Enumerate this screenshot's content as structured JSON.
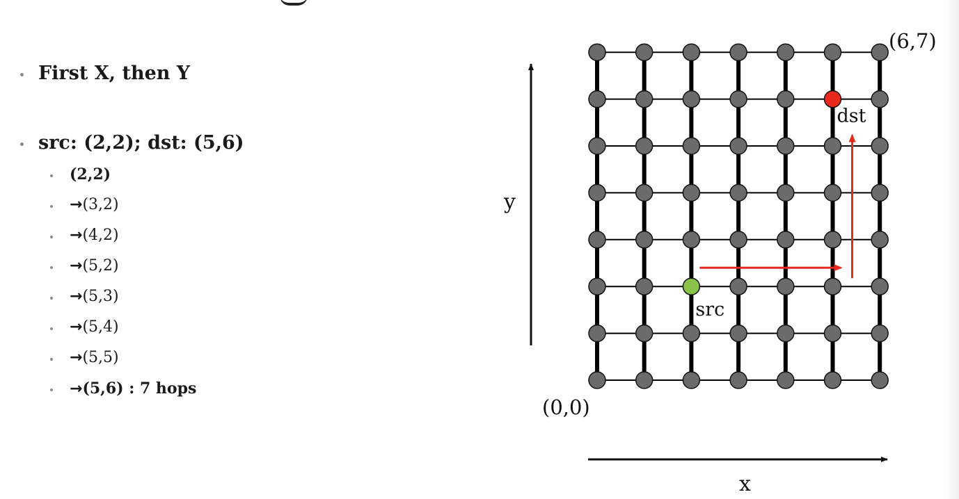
{
  "bullets": {
    "first": "First X, then Y",
    "src_dst": "src: (2,2); dst: (5,6)",
    "path": [
      {
        "arrow": "",
        "text": "(2,2)",
        "bold": true
      },
      {
        "arrow": "→",
        "text": "(3,2)",
        "bold": false
      },
      {
        "arrow": "→",
        "text": "(4,2)",
        "bold": false
      },
      {
        "arrow": "→",
        "text": "(5,2)",
        "bold": false
      },
      {
        "arrow": "→",
        "text": "(5,3)",
        "bold": false
      },
      {
        "arrow": "→",
        "text": "(5,4)",
        "bold": false
      },
      {
        "arrow": "→",
        "text": "(5,5)",
        "bold": false
      },
      {
        "arrow": "→",
        "text": "(5,6) : 7 hops",
        "bold": true
      }
    ]
  },
  "diagram": {
    "columns": 7,
    "rows": 8,
    "src": {
      "x": 2,
      "y": 2,
      "label": "src",
      "color": "#8bc34a"
    },
    "dst": {
      "x": 5,
      "y": 6,
      "label": "dst",
      "color": "#e8291c"
    },
    "node_color": "#6b6b6b",
    "route_color": "#e8291c",
    "corner_top_right": "(6,7)",
    "corner_bottom_left": "(0,0)",
    "x_axis_label": "x",
    "y_axis_label": "y"
  }
}
